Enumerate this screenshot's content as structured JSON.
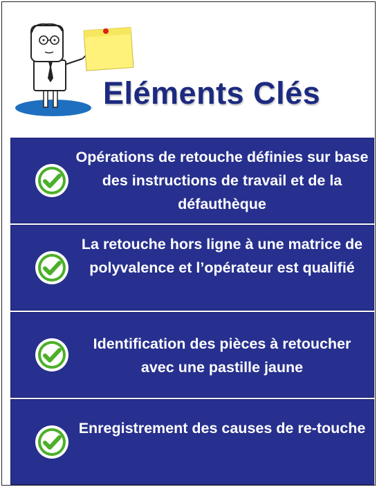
{
  "title": "Eléments Clés",
  "items": [
    {
      "text": "Opérations de retouche définies sur base des instructions de travail et de la défauthèque",
      "icon": "check-circle-icon"
    },
    {
      "text": "La retouche hors ligne à une matrice de polyvalence et l’opérateur est qualifié",
      "icon": "check-circle-icon"
    },
    {
      "text": "Identification des pièces à retoucher avec une pastille jaune",
      "icon": "check-circle-icon"
    },
    {
      "text": "Enregistrement des causes de re-touche",
      "icon": "check-circle-icon"
    }
  ],
  "colors": {
    "panel": "#27308e",
    "title": "#1c2a80",
    "check": "#4caf2a",
    "sticky_note": "#fff27a"
  }
}
